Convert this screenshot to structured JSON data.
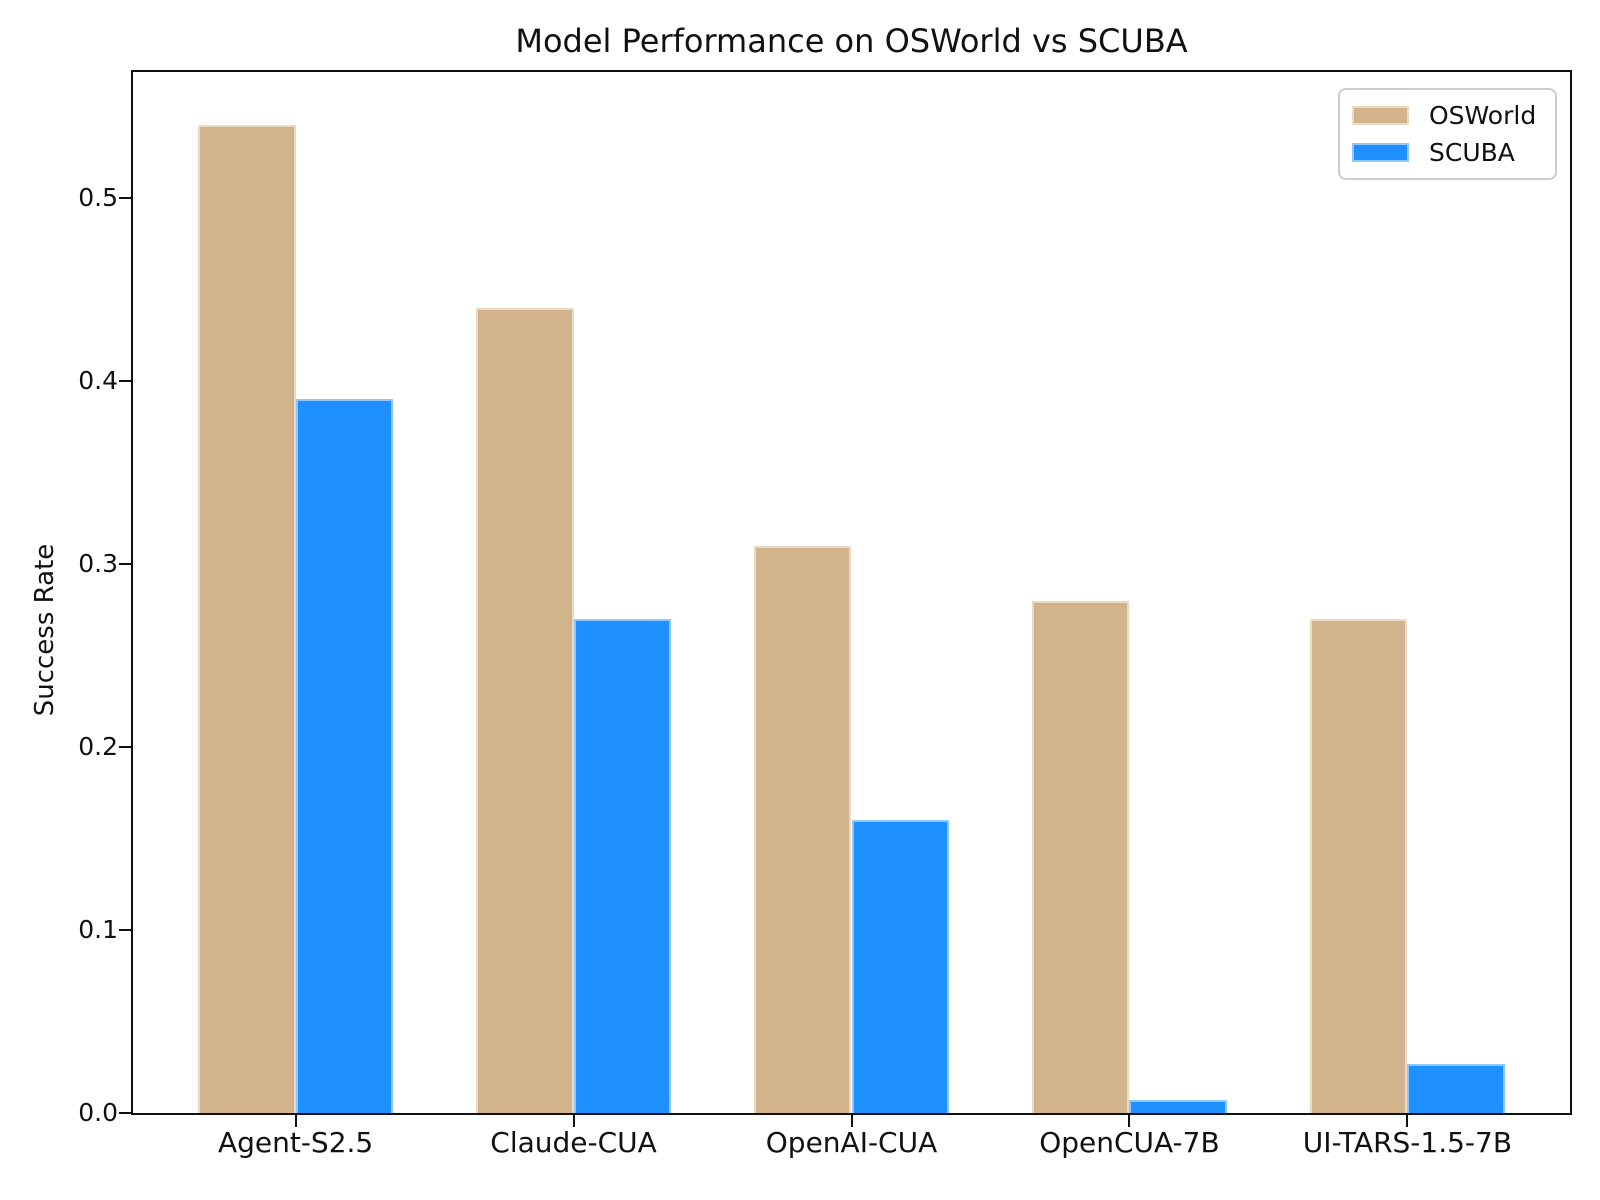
{
  "figure": {
    "title": "Model Performance on OSWorld vs SCUBA",
    "ylabel": "Success Rate"
  },
  "legend": {
    "position": "upper right",
    "items": [
      {
        "label": "OSWorld",
        "color": "#d2b48c"
      },
      {
        "label": "SCUBA",
        "color": "#1e90ff"
      }
    ]
  },
  "chart_data": {
    "type": "bar",
    "title": "Model Performance on OSWorld vs SCUBA",
    "xlabel": "",
    "ylabel": "Success Rate",
    "categories": [
      "Agent-S2.5",
      "Claude-CUA",
      "OpenAI-CUA",
      "OpenCUA-7B",
      "UI-TARS-1.5-7B"
    ],
    "series": [
      {
        "name": "OSWorld",
        "color": "#d2b48c",
        "values": [
          0.54,
          0.44,
          0.31,
          0.28,
          0.27
        ]
      },
      {
        "name": "SCUBA",
        "color": "#1e90ff",
        "values": [
          0.39,
          0.27,
          0.16,
          0.007,
          0.027
        ]
      }
    ],
    "ylim": [
      0,
      0.569
    ],
    "yticks": [
      0.0,
      0.1,
      0.2,
      0.3,
      0.4,
      0.5
    ],
    "ytick_labels": [
      "0.0",
      "0.1",
      "0.2",
      "0.3",
      "0.4",
      "0.5"
    ],
    "grid": false,
    "bar_group_width_fraction": 0.7,
    "legend_position": "upper right"
  }
}
